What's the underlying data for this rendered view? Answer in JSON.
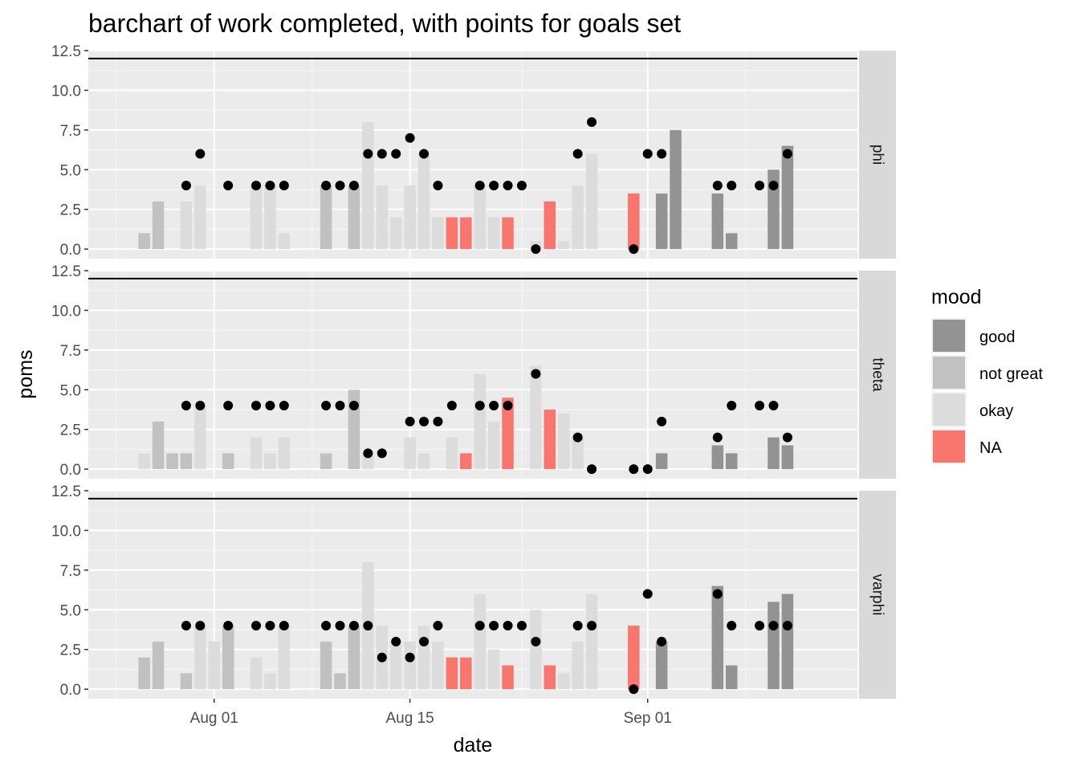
{
  "chart_data": {
    "type": "bar",
    "title": "barchart of work completed, with points for goals set",
    "xlabel": "date",
    "ylabel": "poms",
    "x_tick_labels": [
      "Aug 01",
      "Aug 15",
      "Sep 01"
    ],
    "y_tick_labels": [
      "0.0",
      "2.5",
      "5.0",
      "7.5",
      "10.0",
      "12.5"
    ],
    "ylim": [
      -0.6,
      12.5
    ],
    "xlim": [
      "2021-07-23",
      "2021-09-16"
    ],
    "reference_line_y": 12,
    "grid": true,
    "legend": {
      "title": "mood",
      "position": "right",
      "entries": [
        {
          "label": "good",
          "color": "#939393"
        },
        {
          "label": "not great",
          "color": "#c1c1c1"
        },
        {
          "label": "okay",
          "color": "#dcdcdc"
        },
        {
          "label": "NA",
          "color": "#f8766d"
        }
      ]
    },
    "facets": [
      {
        "label": "phi",
        "bars": [
          {
            "date": "2021-07-27",
            "value": 1,
            "mood": "not great"
          },
          {
            "date": "2021-07-28",
            "value": 3,
            "mood": "not great"
          },
          {
            "date": "2021-07-30",
            "value": 3,
            "mood": "okay"
          },
          {
            "date": "2021-07-31",
            "value": 4,
            "mood": "okay"
          },
          {
            "date": "2021-08-04",
            "value": 4,
            "mood": "okay"
          },
          {
            "date": "2021-08-05",
            "value": 4,
            "mood": "okay"
          },
          {
            "date": "2021-08-06",
            "value": 1,
            "mood": "okay"
          },
          {
            "date": "2021-08-09",
            "value": 4,
            "mood": "not great"
          },
          {
            "date": "2021-08-11",
            "value": 4,
            "mood": "not great"
          },
          {
            "date": "2021-08-12",
            "value": 8,
            "mood": "okay"
          },
          {
            "date": "2021-08-13",
            "value": 4,
            "mood": "okay"
          },
          {
            "date": "2021-08-14",
            "value": 2,
            "mood": "okay"
          },
          {
            "date": "2021-08-15",
            "value": 4,
            "mood": "okay"
          },
          {
            "date": "2021-08-16",
            "value": 6,
            "mood": "okay"
          },
          {
            "date": "2021-08-17",
            "value": 2,
            "mood": "okay"
          },
          {
            "date": "2021-08-18",
            "value": 2,
            "mood": "NA"
          },
          {
            "date": "2021-08-19",
            "value": 2,
            "mood": "NA"
          },
          {
            "date": "2021-08-20",
            "value": 4,
            "mood": "okay"
          },
          {
            "date": "2021-08-21",
            "value": 2,
            "mood": "okay"
          },
          {
            "date": "2021-08-22",
            "value": 2,
            "mood": "NA"
          },
          {
            "date": "2021-08-24",
            "value": 0.5,
            "mood": "okay"
          },
          {
            "date": "2021-08-25",
            "value": 3,
            "mood": "NA"
          },
          {
            "date": "2021-08-26",
            "value": 0.5,
            "mood": "okay"
          },
          {
            "date": "2021-08-27",
            "value": 4,
            "mood": "okay"
          },
          {
            "date": "2021-08-28",
            "value": 6,
            "mood": "okay"
          },
          {
            "date": "2021-08-31",
            "value": 3.5,
            "mood": "NA"
          },
          {
            "date": "2021-09-02",
            "value": 3.5,
            "mood": "good"
          },
          {
            "date": "2021-09-03",
            "value": 7.5,
            "mood": "good"
          },
          {
            "date": "2021-09-06",
            "value": 3.5,
            "mood": "good"
          },
          {
            "date": "2021-09-07",
            "value": 1,
            "mood": "good"
          },
          {
            "date": "2021-09-10",
            "value": 5,
            "mood": "good"
          },
          {
            "date": "2021-09-11",
            "value": 6.5,
            "mood": "good"
          }
        ],
        "goals": [
          {
            "date": "2021-07-30",
            "value": 4
          },
          {
            "date": "2021-07-31",
            "value": 6
          },
          {
            "date": "2021-08-02",
            "value": 4
          },
          {
            "date": "2021-08-04",
            "value": 4
          },
          {
            "date": "2021-08-05",
            "value": 4
          },
          {
            "date": "2021-08-06",
            "value": 4
          },
          {
            "date": "2021-08-09",
            "value": 4
          },
          {
            "date": "2021-08-10",
            "value": 4
          },
          {
            "date": "2021-08-11",
            "value": 4
          },
          {
            "date": "2021-08-12",
            "value": 6
          },
          {
            "date": "2021-08-13",
            "value": 6
          },
          {
            "date": "2021-08-14",
            "value": 6
          },
          {
            "date": "2021-08-15",
            "value": 7
          },
          {
            "date": "2021-08-16",
            "value": 6
          },
          {
            "date": "2021-08-17",
            "value": 4
          },
          {
            "date": "2021-08-20",
            "value": 4
          },
          {
            "date": "2021-08-21",
            "value": 4
          },
          {
            "date": "2021-08-22",
            "value": 4
          },
          {
            "date": "2021-08-23",
            "value": 4
          },
          {
            "date": "2021-08-24",
            "value": 0
          },
          {
            "date": "2021-08-27",
            "value": 6
          },
          {
            "date": "2021-08-28",
            "value": 8
          },
          {
            "date": "2021-08-31",
            "value": 0
          },
          {
            "date": "2021-09-01",
            "value": 6
          },
          {
            "date": "2021-09-02",
            "value": 6
          },
          {
            "date": "2021-09-06",
            "value": 4
          },
          {
            "date": "2021-09-07",
            "value": 4
          },
          {
            "date": "2021-09-09",
            "value": 4
          },
          {
            "date": "2021-09-10",
            "value": 4
          },
          {
            "date": "2021-09-11",
            "value": 6
          }
        ]
      },
      {
        "label": "theta",
        "bars": [
          {
            "date": "2021-07-27",
            "value": 1,
            "mood": "okay"
          },
          {
            "date": "2021-07-28",
            "value": 3,
            "mood": "not great"
          },
          {
            "date": "2021-07-29",
            "value": 1,
            "mood": "not great"
          },
          {
            "date": "2021-07-30",
            "value": 1,
            "mood": "not great"
          },
          {
            "date": "2021-07-31",
            "value": 4,
            "mood": "okay"
          },
          {
            "date": "2021-08-02",
            "value": 1,
            "mood": "not great"
          },
          {
            "date": "2021-08-04",
            "value": 2,
            "mood": "okay"
          },
          {
            "date": "2021-08-05",
            "value": 1,
            "mood": "okay"
          },
          {
            "date": "2021-08-06",
            "value": 2,
            "mood": "okay"
          },
          {
            "date": "2021-08-09",
            "value": 1,
            "mood": "not great"
          },
          {
            "date": "2021-08-11",
            "value": 5,
            "mood": "not great"
          },
          {
            "date": "2021-08-12",
            "value": 1,
            "mood": "okay"
          },
          {
            "date": "2021-08-15",
            "value": 2,
            "mood": "okay"
          },
          {
            "date": "2021-08-16",
            "value": 1,
            "mood": "okay"
          },
          {
            "date": "2021-08-18",
            "value": 2,
            "mood": "okay"
          },
          {
            "date": "2021-08-19",
            "value": 1,
            "mood": "NA"
          },
          {
            "date": "2021-08-20",
            "value": 6,
            "mood": "okay"
          },
          {
            "date": "2021-08-21",
            "value": 3,
            "mood": "okay"
          },
          {
            "date": "2021-08-22",
            "value": 4.5,
            "mood": "NA"
          },
          {
            "date": "2021-08-24",
            "value": 6.5,
            "mood": "okay"
          },
          {
            "date": "2021-08-25",
            "value": 3.75,
            "mood": "NA"
          },
          {
            "date": "2021-08-26",
            "value": 3.5,
            "mood": "okay"
          },
          {
            "date": "2021-08-27",
            "value": 2,
            "mood": "okay"
          },
          {
            "date": "2021-09-02",
            "value": 1,
            "mood": "good"
          },
          {
            "date": "2021-09-06",
            "value": 1.5,
            "mood": "good"
          },
          {
            "date": "2021-09-07",
            "value": 1,
            "mood": "good"
          },
          {
            "date": "2021-09-10",
            "value": 2,
            "mood": "good"
          },
          {
            "date": "2021-09-11",
            "value": 1.5,
            "mood": "good"
          }
        ],
        "goals": [
          {
            "date": "2021-07-30",
            "value": 4
          },
          {
            "date": "2021-07-31",
            "value": 4
          },
          {
            "date": "2021-08-02",
            "value": 4
          },
          {
            "date": "2021-08-04",
            "value": 4
          },
          {
            "date": "2021-08-05",
            "value": 4
          },
          {
            "date": "2021-08-06",
            "value": 4
          },
          {
            "date": "2021-08-09",
            "value": 4
          },
          {
            "date": "2021-08-10",
            "value": 4
          },
          {
            "date": "2021-08-11",
            "value": 4
          },
          {
            "date": "2021-08-12",
            "value": 1
          },
          {
            "date": "2021-08-13",
            "value": 1
          },
          {
            "date": "2021-08-15",
            "value": 3
          },
          {
            "date": "2021-08-16",
            "value": 3
          },
          {
            "date": "2021-08-17",
            "value": 3
          },
          {
            "date": "2021-08-18",
            "value": 4
          },
          {
            "date": "2021-08-20",
            "value": 4
          },
          {
            "date": "2021-08-21",
            "value": 4
          },
          {
            "date": "2021-08-22",
            "value": 4
          },
          {
            "date": "2021-08-24",
            "value": 6
          },
          {
            "date": "2021-08-27",
            "value": 2
          },
          {
            "date": "2021-08-28",
            "value": 0
          },
          {
            "date": "2021-08-31",
            "value": 0
          },
          {
            "date": "2021-09-01",
            "value": 0
          },
          {
            "date": "2021-09-02",
            "value": 3
          },
          {
            "date": "2021-09-06",
            "value": 2
          },
          {
            "date": "2021-09-07",
            "value": 4
          },
          {
            "date": "2021-09-09",
            "value": 4
          },
          {
            "date": "2021-09-10",
            "value": 4
          },
          {
            "date": "2021-09-11",
            "value": 2
          }
        ]
      },
      {
        "label": "varphi",
        "bars": [
          {
            "date": "2021-07-27",
            "value": 2,
            "mood": "not great"
          },
          {
            "date": "2021-07-28",
            "value": 3,
            "mood": "not great"
          },
          {
            "date": "2021-07-30",
            "value": 1,
            "mood": "not great"
          },
          {
            "date": "2021-07-31",
            "value": 4,
            "mood": "okay"
          },
          {
            "date": "2021-08-01",
            "value": 3,
            "mood": "okay"
          },
          {
            "date": "2021-08-02",
            "value": 4,
            "mood": "not great"
          },
          {
            "date": "2021-08-04",
            "value": 2,
            "mood": "okay"
          },
          {
            "date": "2021-08-05",
            "value": 1,
            "mood": "okay"
          },
          {
            "date": "2021-08-06",
            "value": 4,
            "mood": "okay"
          },
          {
            "date": "2021-08-09",
            "value": 3,
            "mood": "not great"
          },
          {
            "date": "2021-08-10",
            "value": 1,
            "mood": "not great"
          },
          {
            "date": "2021-08-11",
            "value": 4,
            "mood": "not great"
          },
          {
            "date": "2021-08-12",
            "value": 8,
            "mood": "okay"
          },
          {
            "date": "2021-08-13",
            "value": 4,
            "mood": "okay"
          },
          {
            "date": "2021-08-14",
            "value": 3,
            "mood": "okay"
          },
          {
            "date": "2021-08-15",
            "value": 3,
            "mood": "okay"
          },
          {
            "date": "2021-08-16",
            "value": 4,
            "mood": "okay"
          },
          {
            "date": "2021-08-17",
            "value": 3,
            "mood": "okay"
          },
          {
            "date": "2021-08-18",
            "value": 2,
            "mood": "NA"
          },
          {
            "date": "2021-08-19",
            "value": 2,
            "mood": "NA"
          },
          {
            "date": "2021-08-20",
            "value": 6,
            "mood": "okay"
          },
          {
            "date": "2021-08-21",
            "value": 2.5,
            "mood": "okay"
          },
          {
            "date": "2021-08-22",
            "value": 1.5,
            "mood": "NA"
          },
          {
            "date": "2021-08-24",
            "value": 5,
            "mood": "okay"
          },
          {
            "date": "2021-08-25",
            "value": 1.5,
            "mood": "NA"
          },
          {
            "date": "2021-08-26",
            "value": 1,
            "mood": "okay"
          },
          {
            "date": "2021-08-27",
            "value": 3,
            "mood": "okay"
          },
          {
            "date": "2021-08-28",
            "value": 6,
            "mood": "okay"
          },
          {
            "date": "2021-08-31",
            "value": 4,
            "mood": "NA"
          },
          {
            "date": "2021-09-02",
            "value": 3,
            "mood": "good"
          },
          {
            "date": "2021-09-06",
            "value": 6.5,
            "mood": "good"
          },
          {
            "date": "2021-09-07",
            "value": 1.5,
            "mood": "good"
          },
          {
            "date": "2021-09-10",
            "value": 5.5,
            "mood": "good"
          },
          {
            "date": "2021-09-11",
            "value": 6,
            "mood": "good"
          }
        ],
        "goals": [
          {
            "date": "2021-07-30",
            "value": 4
          },
          {
            "date": "2021-07-31",
            "value": 4
          },
          {
            "date": "2021-08-02",
            "value": 4
          },
          {
            "date": "2021-08-04",
            "value": 4
          },
          {
            "date": "2021-08-05",
            "value": 4
          },
          {
            "date": "2021-08-06",
            "value": 4
          },
          {
            "date": "2021-08-09",
            "value": 4
          },
          {
            "date": "2021-08-10",
            "value": 4
          },
          {
            "date": "2021-08-11",
            "value": 4
          },
          {
            "date": "2021-08-12",
            "value": 4
          },
          {
            "date": "2021-08-13",
            "value": 2
          },
          {
            "date": "2021-08-14",
            "value": 3
          },
          {
            "date": "2021-08-15",
            "value": 2
          },
          {
            "date": "2021-08-16",
            "value": 3
          },
          {
            "date": "2021-08-17",
            "value": 4
          },
          {
            "date": "2021-08-20",
            "value": 4
          },
          {
            "date": "2021-08-21",
            "value": 4
          },
          {
            "date": "2021-08-22",
            "value": 4
          },
          {
            "date": "2021-08-23",
            "value": 4
          },
          {
            "date": "2021-08-24",
            "value": 3
          },
          {
            "date": "2021-08-27",
            "value": 4
          },
          {
            "date": "2021-08-28",
            "value": 4
          },
          {
            "date": "2021-08-31",
            "value": 0
          },
          {
            "date": "2021-09-01",
            "value": 6
          },
          {
            "date": "2021-09-02",
            "value": 3
          },
          {
            "date": "2021-09-06",
            "value": 6
          },
          {
            "date": "2021-09-07",
            "value": 4
          },
          {
            "date": "2021-09-09",
            "value": 4
          },
          {
            "date": "2021-09-10",
            "value": 4
          },
          {
            "date": "2021-09-11",
            "value": 4
          }
        ]
      }
    ]
  }
}
